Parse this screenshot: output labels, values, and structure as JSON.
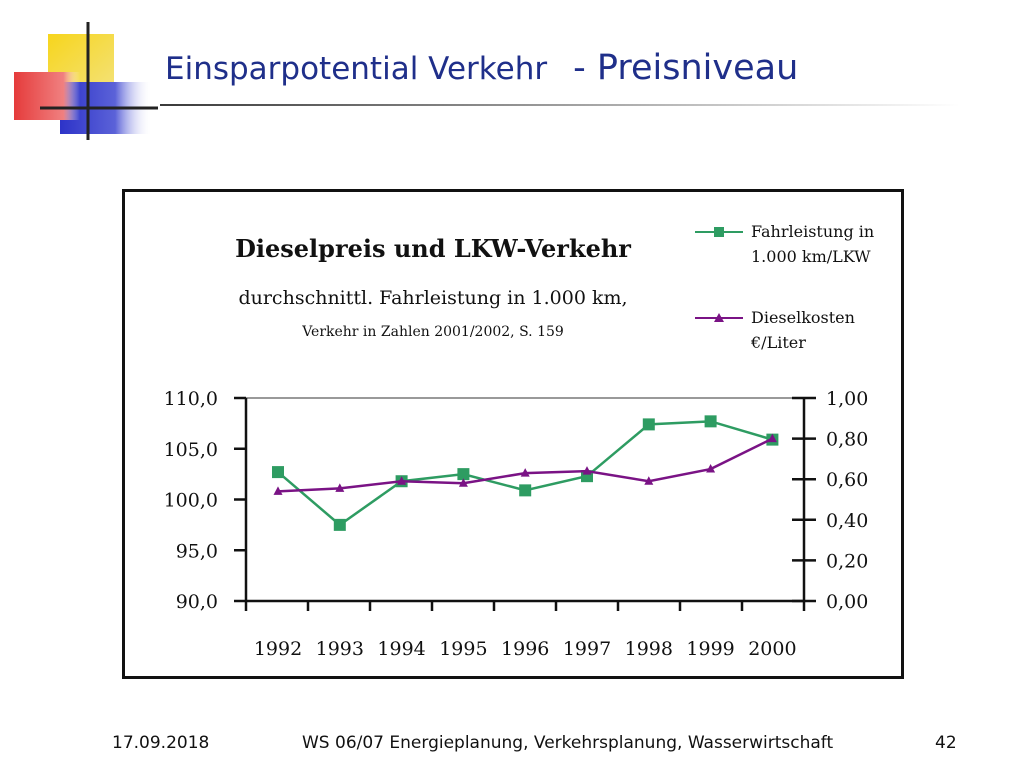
{
  "slide": {
    "title_part1": "Einsparpotential Verkehr",
    "title_part2": "- Preisniveau"
  },
  "colors": {
    "title": "#1f2f8a",
    "logo_yellow": "#f7d51c",
    "logo_red": "#e53b3b",
    "logo_blue": "#2d33c8",
    "series1": "#2e9c62",
    "series2": "#7a1385"
  },
  "chart_data": {
    "type": "line",
    "title": "Dieselpreis und LKW-Verkehr",
    "subtitle": "durchschnittl. Fahrleistung in 1.000 km,",
    "source_note": "Verkehr in Zahlen 2001/2002, S. 159",
    "categories": [
      "1992",
      "1993",
      "1994",
      "1995",
      "1996",
      "1997",
      "1998",
      "1999",
      "2000"
    ],
    "ylim_left": [
      90,
      110
    ],
    "ylim_right": [
      0,
      1
    ],
    "yticks_left": [
      "110,0",
      "105,0",
      "100,0",
      "95,0",
      "90,0"
    ],
    "yticks_right": [
      "1,00",
      "0,80",
      "0,60",
      "0,40",
      "0,20",
      "0,00"
    ],
    "legend_position": "top-right",
    "series": [
      {
        "name_line1": "Fahrleistung in",
        "name_line2": "1.000 km/LKW",
        "axis": "left",
        "marker": "square",
        "values": [
          102.7,
          97.5,
          101.8,
          102.5,
          100.9,
          102.3,
          107.4,
          107.7,
          105.9
        ]
      },
      {
        "name_line1": "Dieselkosten",
        "name_line2": "€/Liter",
        "axis": "right",
        "marker": "triangle",
        "values": [
          0.54,
          0.555,
          0.59,
          0.58,
          0.63,
          0.64,
          0.59,
          0.65,
          0.8
        ]
      }
    ]
  },
  "footer": {
    "date": "17.09.2018",
    "course": "WS 06/07 Energieplanung, Verkehrsplanung, Wasserwirtschaft",
    "page": "42"
  }
}
